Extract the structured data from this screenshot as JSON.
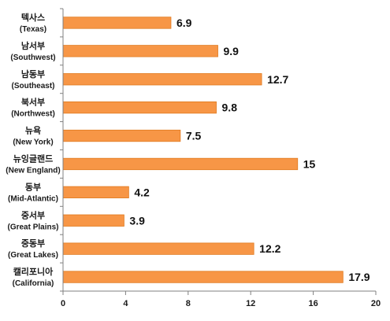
{
  "chart_data": {
    "type": "bar",
    "orientation": "horizontal",
    "categories": [
      {
        "ko": "텍사스",
        "en": "(Texas)"
      },
      {
        "ko": "남서부",
        "en": "(Southwest)"
      },
      {
        "ko": "남동부",
        "en": "(Southeast)"
      },
      {
        "ko": "북서부",
        "en": "(Northwest)"
      },
      {
        "ko": "뉴욕",
        "en": "(New York)"
      },
      {
        "ko": "뉴잉글랜드",
        "en": "(New England)"
      },
      {
        "ko": "동부",
        "en": "(Mid-Atlantic)"
      },
      {
        "ko": "중서부",
        "en": "(Great Plains)"
      },
      {
        "ko": "중동부",
        "en": "(Great Lakes)"
      },
      {
        "ko": "캘리포니아",
        "en": "(California)"
      }
    ],
    "values": [
      6.9,
      9.9,
      12.7,
      9.8,
      7.5,
      15,
      4.2,
      3.9,
      12.2,
      17.9
    ],
    "value_labels": [
      "6.9",
      "9.9",
      "12.7",
      "9.8",
      "7.5",
      "15",
      "4.2",
      "3.9",
      "12.2",
      "17.9"
    ],
    "xlim": [
      0,
      20
    ],
    "xticks": [
      "0",
      "4",
      "8",
      "12",
      "16",
      "20"
    ],
    "grid": false,
    "legend": "none",
    "bar_color": "#F79646",
    "bar_border_color": "#E07A1F",
    "title": "",
    "xlabel": "",
    "ylabel": ""
  }
}
